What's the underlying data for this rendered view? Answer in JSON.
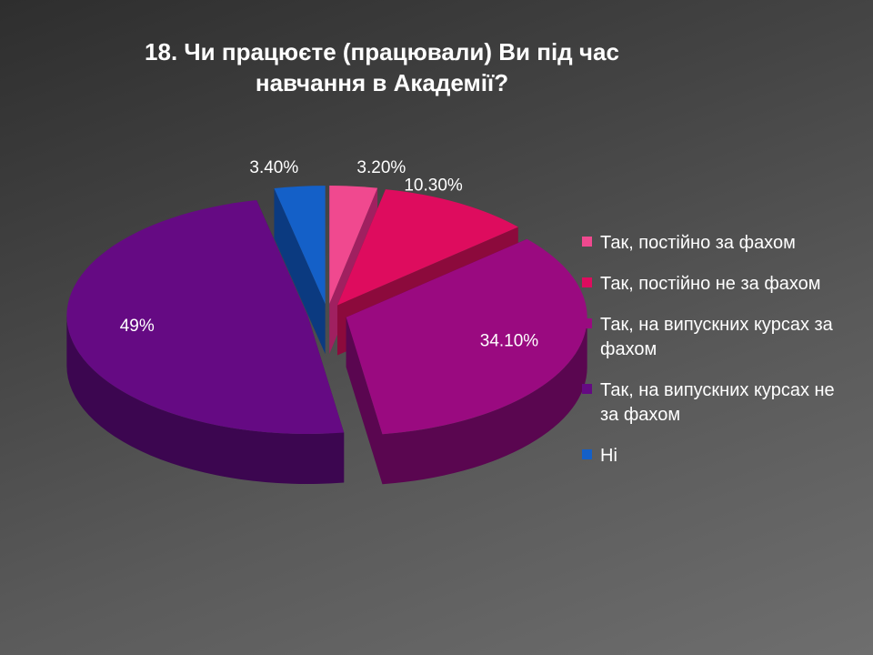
{
  "chart_data": {
    "type": "pie",
    "title": "18. Чи працюєте (працювали) Ви під час\nнавчання в Академії?",
    "categories": [
      "Так, постійно за фахом",
      "Так, постійно не за фахом",
      "Так, на випускних курсах за фахом",
      "Так, на випускних курсах не за фахом",
      "Ні"
    ],
    "values": [
      3.2,
      10.3,
      34.1,
      49,
      3.4
    ],
    "data_labels": [
      "3.20%",
      "10.30%",
      "34.10%",
      "49%",
      "3.40%"
    ],
    "colors": [
      "#f0498f",
      "#de0c5e",
      "#9a0a80",
      "#650a83",
      "#1460c8"
    ],
    "side_colors": [
      "#a02060",
      "#8c0a3c",
      "#5a0650",
      "#3c0650",
      "#0b3a80"
    ],
    "legend_position": "right"
  }
}
